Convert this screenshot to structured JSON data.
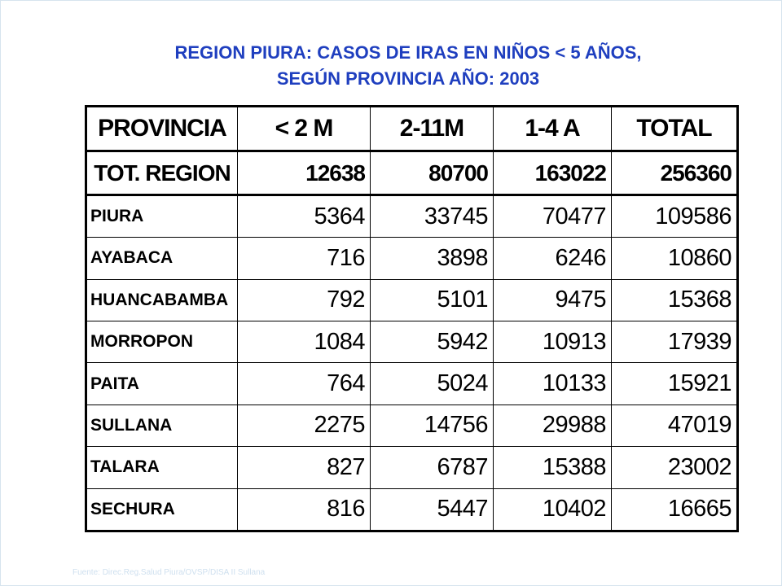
{
  "title": {
    "line1": "REGION PIURA: CASOS DE IRAS EN NIÑOS < 5 AÑOS,",
    "line2": "SEGÚN PROVINCIA  AÑO: 2003"
  },
  "table": {
    "headers": [
      "PROVINCIA",
      "< 2 M",
      "2-11M",
      "1-4 A",
      "TOTAL"
    ],
    "total_row": {
      "name": "TOT. REGION",
      "values": [
        "12638",
        "80700",
        "163022",
        "256360"
      ]
    },
    "rows": [
      {
        "name": "PIURA",
        "values": [
          "5364",
          "33745",
          "70477",
          "109586"
        ]
      },
      {
        "name": "AYABACA",
        "values": [
          "716",
          "3898",
          "6246",
          "10860"
        ]
      },
      {
        "name": "HUANCABAMBA",
        "values": [
          "792",
          "5101",
          "9475",
          "15368"
        ]
      },
      {
        "name": "MORROPON",
        "values": [
          "1084",
          "5942",
          "10913",
          "17939"
        ]
      },
      {
        "name": "PAITA",
        "values": [
          "764",
          "5024",
          "10133",
          "15921"
        ]
      },
      {
        "name": "SULLANA",
        "values": [
          "2275",
          "14756",
          "29988",
          "47019"
        ]
      },
      {
        "name": "TALARA",
        "values": [
          "827",
          "6787",
          "15388",
          "23002"
        ]
      },
      {
        "name": "SECHURA",
        "values": [
          "816",
          "5447",
          "10402",
          "16665"
        ]
      }
    ]
  },
  "source": "Fuente: Direc.Reg.Salud Piura/OVSP/DISA II Sullana"
}
